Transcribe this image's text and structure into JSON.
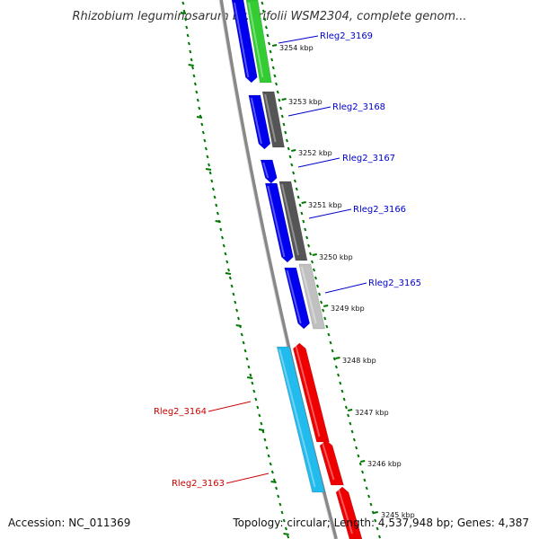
{
  "header": {
    "title": "Rhizobium leguminosarum bv. trifolii WSM2304, complete genom..."
  },
  "footer": {
    "accession": "Accession: NC_011369",
    "stats": "Topology: circular; Length: 4,537,948 bp; Genes: 4,387"
  },
  "colors": {
    "forward_gene": "#0000ee",
    "hypothetical_gene": "#555555",
    "light_gene": "#c0c0c0",
    "green_gene": "#33cc33",
    "reverse_gene": "#ee0000",
    "cyan_gene": "#22bbee",
    "backbone": "#888888",
    "tick": "#007700",
    "label_forward": "#0000cc",
    "label_reverse": "#cc0000"
  },
  "ruler_labels": [
    "3254 kbp",
    "3253 kbp",
    "3252 kbp",
    "3251 kbp",
    "3250 kbp",
    "3249 kbp",
    "3248 kbp",
    "3247 kbp",
    "3246 kbp",
    "3245 kbp"
  ],
  "gene_labels": {
    "forward": [
      "Rleg2_3169",
      "Rleg2_3168",
      "Rleg2_3167",
      "Rleg2_3166",
      "Rleg2_3165"
    ],
    "reverse": [
      "Rleg2_3164",
      "Rleg2_3163"
    ]
  }
}
